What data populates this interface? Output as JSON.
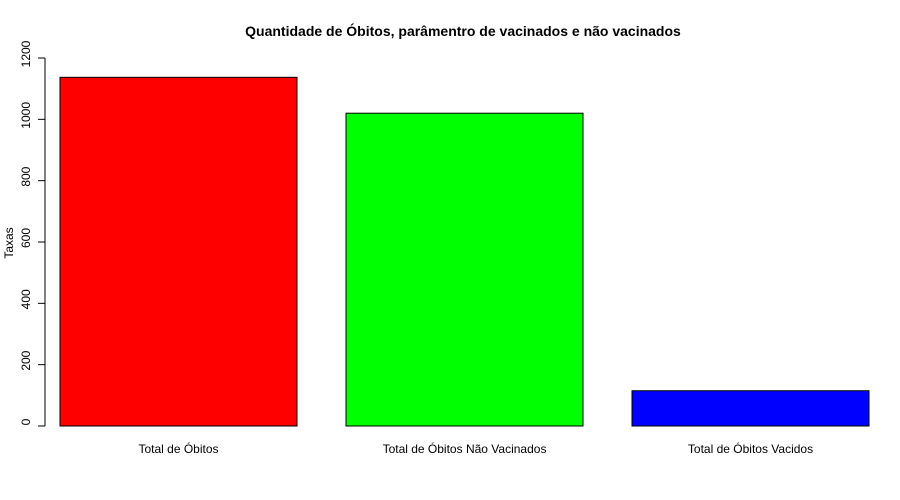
{
  "chart_data": {
    "type": "bar",
    "title": "Quantidade de Óbitos, parâmentro de vacinados e não vacinados",
    "xlabel": "",
    "ylabel": "Taxas",
    "ylim": [
      0,
      1200
    ],
    "yticks": [
      0,
      200,
      400,
      600,
      800,
      1000,
      1200
    ],
    "categories": [
      "Total de Óbitos",
      "Total de Óbitos Não Vacinados",
      "Total de Óbitos Vacidos"
    ],
    "values": [
      1137,
      1020,
      115
    ],
    "colors": [
      "#ff0000",
      "#00ff00",
      "#0000ff"
    ],
    "grid": false,
    "legend": "none"
  }
}
